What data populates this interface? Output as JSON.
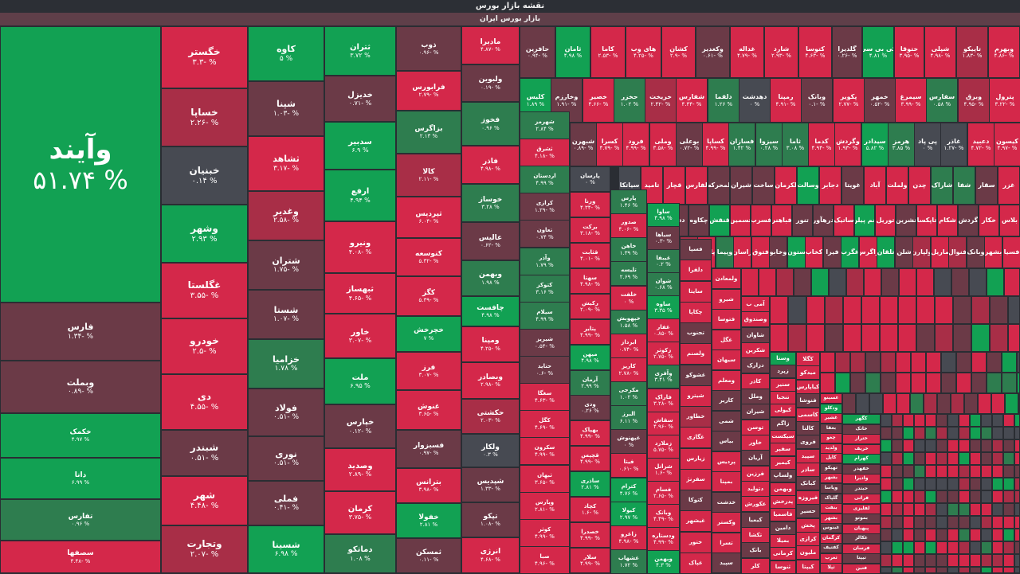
{
  "title": "نقشه بازار بورس",
  "subtitle": "بازار بورس ایران",
  "colors": {
    "G": "#12a153",
    "g": "#2e7d4f",
    "n": "#474a52",
    "r": "#6b3a47",
    "R": "#a82e47",
    "B": "#d4284a",
    "bg": "#2a2d33"
  },
  "tiles": [
    {
      "n": "وآیند",
      "p": "% ۵۱.۷۴",
      "c": "G"
    },
    {
      "n": "فارس",
      "p": "% -۱.۳۴",
      "c": "r"
    },
    {
      "n": "وبملت",
      "p": "% -۰.۸۹",
      "c": "r"
    },
    {
      "n": "خکمک",
      "p": "% ۴.۹۷",
      "c": "G"
    },
    {
      "n": "دانا",
      "p": "% ۶.۹۹",
      "c": "G"
    },
    {
      "n": "تفارس",
      "p": "% ۰.۹۶",
      "c": "g"
    },
    {
      "n": "سصفها",
      "p": "% -۳.۴۸",
      "c": "B"
    },
    {
      "n": "خگستر",
      "p": "% -۳.۳",
      "c": "B"
    },
    {
      "n": "خساپا",
      "p": "% -۲.۲۶",
      "c": "R"
    },
    {
      "n": "خبنیان",
      "p": "% ۰.۱۴",
      "c": "n"
    },
    {
      "n": "وشهر",
      "p": "% ۲.۹۳",
      "c": "G"
    },
    {
      "n": "غگلستا",
      "p": "% -۳.۵۵",
      "c": "B"
    },
    {
      "n": "خودرو",
      "p": "% -۲.۵",
      "c": "B"
    },
    {
      "n": "دی",
      "p": "% -۴.۵۵",
      "c": "B"
    },
    {
      "n": "شبندر",
      "p": "% -۰.۵۱",
      "c": "r"
    },
    {
      "n": "شهر",
      "p": "% -۴.۴۸",
      "c": "B"
    },
    {
      "n": "وتجارت",
      "p": "% -۲.۰۷",
      "c": "R"
    },
    {
      "n": "کاوه",
      "p": "% ۵",
      "c": "G"
    },
    {
      "n": "شپنا",
      "p": "% -۱.۰۳",
      "c": "r"
    },
    {
      "n": "ثشاهد",
      "p": "% -۳.۱۷",
      "c": "B"
    },
    {
      "n": "وغدیر",
      "p": "% -۲.۵۸",
      "c": "R"
    },
    {
      "n": "شتران",
      "p": "% -۱.۷۵",
      "c": "r"
    },
    {
      "n": "شستا",
      "p": "% -۱.۰۷",
      "c": "r"
    },
    {
      "n": "خزامیا",
      "p": "% ۱.۷۸",
      "c": "g"
    },
    {
      "n": "فولاد",
      "p": "% -۰.۵۱",
      "c": "r"
    },
    {
      "n": "نوری",
      "p": "% -۰.۵۱",
      "c": "r"
    },
    {
      "n": "فملی",
      "p": "% -۰.۴۱",
      "c": "r"
    },
    {
      "n": "شسینا",
      "p": "% ۶.۹۸",
      "c": "G"
    },
    {
      "n": "ثتران",
      "p": "% ۳.۷۲",
      "c": "G"
    },
    {
      "n": "خدیزل",
      "p": "% -۰.۷۱",
      "c": "r"
    },
    {
      "n": "سدبیر",
      "p": "% ۶.۹",
      "c": "G"
    },
    {
      "n": "ارفع",
      "p": "% ۴.۹۴",
      "c": "G"
    },
    {
      "n": "ونیرو",
      "p": "% -۴.۰۸",
      "c": "B"
    },
    {
      "n": "ثبهساز",
      "p": "% -۴.۶۵",
      "c": "B"
    },
    {
      "n": "خاور",
      "p": "% -۳.۰۷",
      "c": "B"
    },
    {
      "n": "ملت",
      "p": "% ۶.۹۵",
      "c": "G"
    },
    {
      "n": "خپارس",
      "p": "% -۰.۱۲",
      "c": "r"
    },
    {
      "n": "وصدید",
      "p": "% -۲.۸۹",
      "c": "B"
    },
    {
      "n": "کرمان",
      "p": "% -۳.۷۵",
      "c": "B"
    },
    {
      "n": "دماتکو",
      "p": "% ۱.۰۸",
      "c": "g"
    },
    {
      "n": "ذوب",
      "p": "% -۰.۹۶",
      "c": "r"
    },
    {
      "n": "فرابورس",
      "p": "% -۲.۷۹",
      "c": "B"
    },
    {
      "n": "بزاگرس",
      "p": "% ۲.۱۳",
      "c": "g"
    },
    {
      "n": "کالا",
      "p": "% -۲.۱۱",
      "c": "R"
    },
    {
      "n": "ثپردیس",
      "p": "% -۶.۰۴",
      "c": "B"
    },
    {
      "n": "کتوسعه",
      "p": "% -۵.۳۲",
      "c": "B"
    },
    {
      "n": "کگز",
      "p": "% -۵.۳۹",
      "c": "B"
    },
    {
      "n": "خچرخش",
      "p": "% ۷",
      "c": "G"
    },
    {
      "n": "فرز",
      "p": "% -۳.۰۷",
      "c": "B"
    },
    {
      "n": "غنوش",
      "p": "% -۳.۶۵",
      "c": "B"
    },
    {
      "n": "فسبزوار",
      "p": "% -۰.۹۷",
      "c": "r"
    },
    {
      "n": "بترانس",
      "p": "% -۳.۹۸",
      "c": "B"
    },
    {
      "n": "خفولا",
      "p": "% ۲.۸۱",
      "c": "G"
    },
    {
      "n": "ثمسکن",
      "p": "% -۰.۱۱",
      "c": "r"
    },
    {
      "n": "ماديرا",
      "p": "% -۴.۸۷",
      "c": "B"
    },
    {
      "n": "ولبوین",
      "p": "% -۰.۱۹",
      "c": "r"
    },
    {
      "n": "فخوز",
      "p": "% ۰.۹۶",
      "c": "g"
    },
    {
      "n": "فاذر",
      "p": "% -۴.۹۸",
      "c": "B"
    },
    {
      "n": "خوساز",
      "p": "% ۳.۲۸",
      "c": "g"
    },
    {
      "n": "عالیس",
      "p": "% -۰.۶۲",
      "c": "r"
    },
    {
      "n": "وبهمن",
      "p": "% ۱.۹۸",
      "c": "g"
    },
    {
      "n": "چافست",
      "p": "% ۴.۹۸",
      "c": "G"
    },
    {
      "n": "ومپنا",
      "p": "% -۴.۲۵",
      "c": "B"
    },
    {
      "n": "وبصادر",
      "p": "% -۲.۹۸",
      "c": "B"
    },
    {
      "n": "حکشتی",
      "p": "% -۲.۰۳",
      "c": "R"
    },
    {
      "n": "ولکار",
      "p": "% ۰.۳",
      "c": "n"
    },
    {
      "n": "شپدیس",
      "p": "% -۱.۳۳",
      "c": "r"
    },
    {
      "n": "تپکو",
      "p": "% -۱.۰۸",
      "c": "r"
    },
    {
      "n": "انرژی",
      "p": "% -۴.۶۸",
      "c": "B"
    },
    {
      "n": "حافرین",
      "p": "% -۰.۹۴",
      "c": "r"
    },
    {
      "n": "ثامان",
      "p": "% ۴.۹۸",
      "c": "G"
    },
    {
      "n": "کاما",
      "p": "% -۲.۵۳",
      "c": "B"
    },
    {
      "n": "های وب",
      "p": "% -۴.۲۵",
      "c": "B"
    },
    {
      "n": "کشان",
      "p": "% -۲.۹",
      "c": "B"
    },
    {
      "n": "وکغدیر",
      "p": "% -۰.۶۱",
      "c": "r"
    },
    {
      "n": "غداله",
      "p": "% -۴.۷۹",
      "c": "B"
    },
    {
      "n": "شارد",
      "p": "% -۲.۹۳",
      "c": "B"
    },
    {
      "n": "کتوسا",
      "p": "% -۴.۶۳",
      "c": "B"
    },
    {
      "n": "گلدیرا",
      "p": "% -۰.۲۶",
      "c": "r"
    },
    {
      "n": "کی بی سی",
      "p": "% ۴.۸۱",
      "c": "G"
    },
    {
      "n": "ختوقا",
      "p": "% -۳.۹۵",
      "c": "B"
    },
    {
      "n": "شپلی",
      "p": "% -۴.۹۸",
      "c": "B"
    },
    {
      "n": "تاپیکو",
      "p": "% -۱.۸۳",
      "c": "R"
    },
    {
      "n": "وبهرم",
      "p": "% -۴.۸۶",
      "c": "B"
    }
  ],
  "row1_labels": [
    "پترول",
    "وبرق",
    "سفارس",
    "سیمرغ",
    "خمهر",
    "پکویر",
    "وبانک",
    "رمپنا",
    "دهدشت",
    "دلقما",
    "شفارس",
    "خریخت",
    "حخزر",
    "خصیر",
    "وخارزم",
    "کلیس"
  ],
  "row1_pct": [
    "% -۳.۲۲",
    "% -۴.۹۵",
    "% ۰.۵۸",
    "% -۳.۹۹",
    "% -۰.۵۲",
    "% -۲.۷۷",
    "% -۰.۱",
    "% -۴.۹۱",
    "% ۰",
    "% ۱.۲۶",
    "% -۴.۳۴",
    "% -۲.۴۲",
    "% ۱.۰۲",
    "% -۴.۶۶",
    "% -۱.۹۱",
    "% ۱.۸۹"
  ],
  "row2_labels": [
    "کیسون",
    "دعبید",
    "غاذر",
    "پی پاد",
    "هرمز",
    "سیدادر",
    "وگردش",
    "کدما",
    "ثاما",
    "سیزوا",
    "فسازان",
    "کساپا",
    "بوعلی",
    "وملی",
    "فرود",
    "کسرا",
    "شبهرن"
  ],
  "row2_pct": [
    "% -۴.۹۷",
    "% -۴.۷۲",
    "% -۱.۲۷",
    "% ۰",
    "% ۳.۸۵",
    "% ۵.۸۲",
    "% -۱.۹۳",
    "% -۴.۹۴",
    "% ۳.۰۸",
    "% ۰.۲۸",
    "% ۱.۴۲",
    "% -۴.۹۹",
    "% -۰.۷۲",
    "% -۳.۵۸",
    "% -۴.۹۹",
    "% -۴.۷۹",
    "% -۰.۸۹"
  ],
  "row3_labels": [
    "غزر",
    "سقار",
    "شفا",
    "شاراک",
    "چدن",
    "ولملت",
    "آباد",
    "غویتا",
    "دجابر",
    "وسالت",
    "لکرمان",
    "ساخت",
    "شیران",
    "لمحرکه",
    "لفارس",
    "قچار",
    "تامید",
    "سیاتکا"
  ],
  "row4_labels": [
    "بلاس",
    "خکار",
    "گردش",
    "شکام",
    "تاپکسا",
    "تشرین",
    "توریل",
    "جم پیلن",
    "ساتیک",
    "درهآور",
    "تنور",
    "فباهنر",
    "فسرب",
    "تسمین",
    "قنقش",
    "چکاوه",
    "ددانا",
    "کگاز"
  ],
  "row5_labels": [
    "فسیا",
    "بشهر",
    "وبانک",
    "فنوال",
    "ماریل",
    "ولپارن",
    "شلن",
    "تلقان",
    "زاگرس",
    "غگرب",
    "فیرا",
    "کخاب",
    "ستون",
    "وخابو",
    "فتوق",
    "راسان",
    "وپیما",
    "پارس",
    "چکارن"
  ],
  "col_a": [
    {
      "n": "شهرمز",
      "p": "% ۲.۸۴"
    },
    {
      "n": "ثشرق",
      "p": "% -۴.۱۸"
    },
    {
      "n": "اردستان",
      "p": "% ۴.۹۹"
    },
    {
      "n": "کرازی",
      "p": "% -۱.۲۹"
    },
    {
      "n": "تعاون",
      "p": "% ۰.۷۴"
    },
    {
      "n": "وآذر",
      "p": "% ۱.۷۹"
    },
    {
      "n": "کتوکز",
      "p": "% ۳.۱۶"
    },
    {
      "n": "سیلام",
      "p": "% ۴.۹۹"
    },
    {
      "n": "شیریز",
      "p": "% -۰.۵۴"
    },
    {
      "n": "حتاید",
      "p": "% -۰.۶"
    },
    {
      "n": "سغگا",
      "p": "% -۴.۶۳"
    },
    {
      "n": "کگل",
      "p": "% -۴.۶۹"
    },
    {
      "n": "سکرون",
      "p": "% -۴.۹۹"
    },
    {
      "n": "ثبهان",
      "p": "% -۳.۶۵"
    },
    {
      "n": "وپارس",
      "p": "% -۲.۸۱"
    },
    {
      "n": "کوثر",
      "p": "% -۴.۹۹"
    },
    {
      "n": "صبا",
      "p": "% -۴.۹۶"
    }
  ],
  "col_b": [
    {
      "n": "پارسان",
      "p": "% ۰"
    },
    {
      "n": "ورنا",
      "p": "% -۴.۳۴"
    },
    {
      "n": "برکت",
      "p": "% -۳.۱۸"
    },
    {
      "n": "قثابت",
      "p": "% -۴.۰۱"
    },
    {
      "n": "سهتا",
      "p": "% -۴.۹۸"
    },
    {
      "n": "رکیش",
      "p": "% -۲.۰۹"
    },
    {
      "n": "پتایر",
      "p": "% -۴.۹۹"
    },
    {
      "n": "میهن",
      "p": "% ۴.۹۸"
    },
    {
      "n": "آرمان",
      "p": "% ۲.۹۹"
    },
    {
      "n": "ودی",
      "p": "% ۰.۲۶"
    },
    {
      "n": "بهپاک",
      "p": "% -۴.۹۹"
    },
    {
      "n": "قچپس",
      "p": "% -۴.۹۹"
    },
    {
      "n": "ساذری",
      "p": "% ۲.۸۱"
    },
    {
      "n": "کچاد",
      "p": "% -۱.۶"
    },
    {
      "n": "خصدرا",
      "p": "% -۴.۹۹"
    },
    {
      "n": "سلار",
      "p": "% -۴.۹۹"
    }
  ],
  "col_c": [
    {
      "n": "پارس",
      "p": "% ۱.۴۶"
    },
    {
      "n": "صدور",
      "p": "% -۴.۰۶"
    },
    {
      "n": "خاهن",
      "p": "% ۱.۳۹"
    },
    {
      "n": "تلیسه",
      "p": "% ۲.۶۹"
    },
    {
      "n": "خلفت",
      "p": "% ۰"
    },
    {
      "n": "خپهوبش",
      "p": "% ۱.۵۸"
    },
    {
      "n": "ابرداز",
      "p": "% -۰.۷۴"
    },
    {
      "n": "کاریز",
      "p": "% -۲.۷۸"
    },
    {
      "n": "مکرجی",
      "p": "% ۱.۰۲"
    },
    {
      "n": "البرز",
      "p": "% ۶.۱۱"
    },
    {
      "n": "غپهنوش",
      "p": "% ۰"
    },
    {
      "n": "فیتا",
      "p": "% -۰.۶۱"
    },
    {
      "n": "کترام",
      "p": "% ۴.۷۶"
    },
    {
      "n": "کیولا",
      "p": "% ۲.۹۷"
    },
    {
      "n": "زاغرو",
      "p": "% -۴.۹۸"
    },
    {
      "n": "غشهاب",
      "p": "% ۱.۷۲"
    }
  ],
  "col_d": [
    {
      "n": "ساوا",
      "p": "% ۴.۹۸"
    },
    {
      "n": "سیاها",
      "p": "% -۰.۳"
    },
    {
      "n": "غیبفا",
      "p": "% ۰.۲"
    },
    {
      "n": "شوان",
      "p": "% ۰.۶۸"
    },
    {
      "n": "ساوه",
      "p": "% ۳.۳۵"
    },
    {
      "n": "غفار",
      "p": "% -۰.۸۵"
    },
    {
      "n": "زکوثر",
      "p": "% -۲.۷۵"
    },
    {
      "n": "وآفری",
      "p": "% ۳.۴۱"
    },
    {
      "n": "فاراک",
      "p": "% -۳.۲۸"
    },
    {
      "n": "سقاش",
      "p": "% -۴.۹۶"
    },
    {
      "n": "زملارد",
      "p": "% -۵.۷۵"
    },
    {
      "n": "شرانل",
      "p": "% -۱.۶"
    },
    {
      "n": "فسام",
      "p": "% -۲.۶۵"
    },
    {
      "n": "وبانک",
      "p": "% -۴.۴۹"
    },
    {
      "n": "ودستاره",
      "p": "% -۴.۹۹"
    },
    {
      "n": "وبهمن",
      "p": "% ۴.۳"
    }
  ],
  "col_e": [
    "فسپا",
    "دلفرا",
    "سایتا",
    "چکاپا",
    "تجنوب",
    "ولصنم",
    "غشوکو",
    "شیترو",
    "خطاور",
    "غگازی",
    "زیارس",
    "سفرنژ",
    "کتوکا",
    "غیشهر",
    "ختور",
    "غپاک"
  ],
  "col_f": [
    "ولمعادن",
    "شیرو",
    "فتوسا",
    "غگل",
    "سیهان",
    "ومعلم",
    "کاربر",
    "شمی",
    "بیاس",
    "پردیس",
    "بمپنا",
    "خدشت",
    "وکستر",
    "تسرا",
    "سپید"
  ],
  "col_g": [
    "آمی ب",
    "وصندوق",
    "شاوان",
    "شکرین",
    "دزارک",
    "کاذر",
    "وملل",
    "شیران",
    "توسن",
    "خاور",
    "آریان",
    "فرزین",
    "دتولید",
    "عکورش",
    "کیمیا",
    "تکشا",
    "بانک",
    "کلر"
  ],
  "col_h": [
    "وستا",
    "زپرد",
    "سنیر",
    "تنجیا",
    "کیولی",
    "زاگم",
    "سیکست",
    "سفپر",
    "کیمیر",
    "ولساپ",
    "وبهمن",
    "پدرخش",
    "فاسمیا",
    "دامین",
    "بمیلا",
    "کرمانی",
    "ثنوسا"
  ],
  "col_i": [
    "کگلا",
    "میدکو",
    "کیاپارس",
    "فنوشا",
    "کاسمی",
    "کالتا",
    "فروی",
    "سپید",
    "ساذر",
    "کبانک",
    "فیروزه",
    "حسیر",
    "پخش",
    "کرازی",
    "ملیون",
    "کیپتا"
  ],
  "col_j": [
    "غسینو",
    "ودکلو",
    "غشیر",
    "بعقا",
    "چغو",
    "ولدید",
    "کاپل",
    "تهیکو",
    "بشهر",
    "وپاسا",
    "گلپاک",
    "بنفت",
    "بشهر",
    "غبنوس",
    "کرگمان",
    "کفتیف",
    "ثغرب",
    "ثپلا"
  ],
  "col_k": [
    "کگهر",
    "خاتک",
    "ختراز",
    "خریف",
    "کهرام",
    "خفهدر",
    "وادیرا",
    "حبتدر",
    "فرانی",
    "لفلیزی",
    "بموتو",
    "پبهبان",
    "غکالز",
    "فرسان",
    "تیپتا",
    "فتین"
  ]
}
